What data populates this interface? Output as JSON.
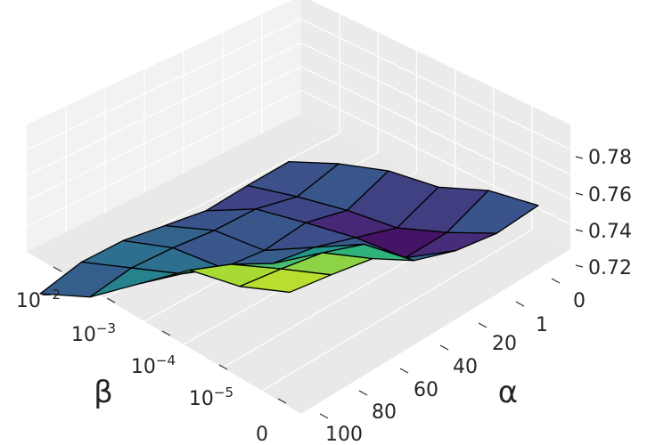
{
  "chart_data": {
    "type": "surface3d",
    "xlabel": "α",
    "ylabel": "β",
    "x_ticks": [
      "0",
      "1",
      "20",
      "40",
      "60",
      "80",
      "100"
    ],
    "y_ticks": [
      {
        "base": "10",
        "exp": "−2"
      },
      {
        "base": "10",
        "exp": "−3"
      },
      {
        "base": "10",
        "exp": "−4"
      },
      {
        "base": "10",
        "exp": "−5"
      },
      {
        "base": "0",
        "exp": ""
      }
    ],
    "z_ticks": [
      "0.72",
      "0.74",
      "0.76",
      "0.78"
    ],
    "zlim": [
      0.715,
      0.79
    ],
    "colormap": "viridis",
    "grid": true,
    "z": [
      [
        0.742,
        0.746,
        0.741,
        0.746,
        0.744,
        0.738
      ],
      [
        0.737,
        0.73,
        0.726,
        0.732,
        0.735,
        0.736
      ],
      [
        0.74,
        0.727,
        0.735,
        0.739,
        0.742,
        0.733
      ],
      [
        0.749,
        0.754,
        0.744,
        0.734,
        0.742,
        0.738
      ],
      [
        0.767,
        0.764,
        0.748,
        0.737,
        0.745,
        0.743
      ],
      [
        0.771,
        0.768,
        0.764,
        0.749,
        0.746,
        0.743
      ],
      [
        0.774,
        0.771,
        0.776,
        0.758,
        0.74,
        0.735
      ]
    ]
  }
}
